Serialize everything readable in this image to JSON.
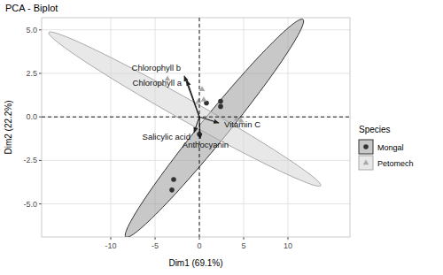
{
  "chart_data": {
    "type": "scatter",
    "title": "PCA - Biplot",
    "x_label": "Dim1 (69.1%)",
    "y_label": "Dim2 (22.2%)",
    "legend_title": "Species",
    "legend": "right",
    "grid": true,
    "xlim": [
      -17.8,
      17
    ],
    "ylim": [
      -6.9,
      5.7
    ],
    "xticks": [
      -10,
      -5,
      0,
      5,
      10
    ],
    "yticks": [
      {
        "value": 5,
        "label": "5.0"
      },
      {
        "value": 2.5,
        "label": "2.5"
      },
      {
        "value": 0,
        "label": "0.0"
      },
      {
        "value": -2.5,
        "label": "-2.5"
      },
      {
        "value": -5,
        "label": "-5.0"
      }
    ],
    "series": [
      {
        "name": "Mongal",
        "color": "#333333",
        "marker": "circle",
        "x": [
          -2.9,
          -3.1,
          0.0,
          2.4,
          2.4,
          0.8
        ],
        "values": [
          -3.6,
          -4.2,
          -1.0,
          0.9,
          0.6,
          0.8
        ],
        "ellipse": {
          "cx": 1.7,
          "cy": -0.65,
          "major_end": [
            11.7,
            5.6
          ],
          "minor_end": [
            2.87,
            -1.13
          ],
          "color": "#9a9a9a"
        }
      },
      {
        "name": "Petomech",
        "color": "#a8a8a8",
        "marker": "triangle",
        "x": [
          -3.6,
          0.3,
          0.5,
          4.2,
          4.7,
          -0.1
        ],
        "values": [
          2.2,
          1.6,
          1.0,
          -0.1,
          -0.2,
          0.9
        ],
        "ellipse": {
          "cx": -1.65,
          "cy": 0.45,
          "major_end": [
            13.7,
            -3.95
          ],
          "minor_end": [
            -2.24,
            -0.08
          ],
          "color": "#d6d6d6"
        }
      }
    ],
    "arrows": [
      {
        "name": "Chlorophyll b",
        "x": -1.7,
        "y": 2.35
      },
      {
        "name": "Chlorophyll a",
        "x": -1.4,
        "y": 2.1
      },
      {
        "name": "Vitamin C",
        "x": 2.2,
        "y": -0.35
      },
      {
        "name": "Salicylic acid",
        "x": -0.6,
        "y": -0.9
      },
      {
        "name": "Anthocyanin",
        "x": 0.1,
        "y": -1.25
      }
    ]
  }
}
